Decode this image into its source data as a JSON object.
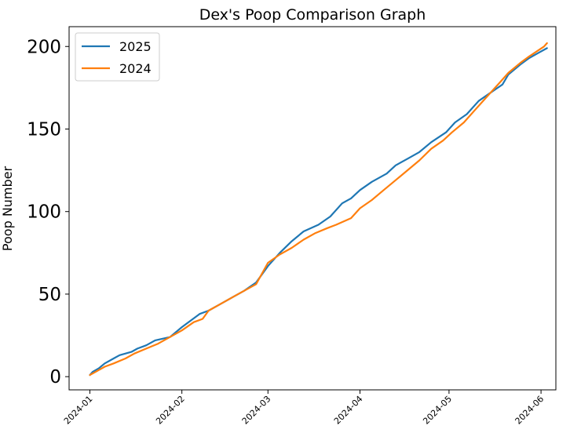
{
  "chart_data": {
    "type": "line",
    "title": "Dex's Poop Comparison Graph",
    "xlabel": "",
    "ylabel": "Poop Number",
    "x_axis_type": "date",
    "xlim": [
      "2023-12-25",
      "2024-06-06"
    ],
    "ylim": [
      -8,
      212
    ],
    "x_ticks": [
      "2024-01",
      "2024-02",
      "2024-03",
      "2024-04",
      "2024-05",
      "2024-06"
    ],
    "y_ticks": [
      0,
      50,
      100,
      150,
      200
    ],
    "grid": false,
    "legend_position": "upper-left",
    "series": [
      {
        "name": "2025",
        "color": "#1f77b4",
        "points": [
          [
            "2024-01-01",
            1
          ],
          [
            "2024-01-02",
            3
          ],
          [
            "2024-01-04",
            5
          ],
          [
            "2024-01-06",
            8
          ],
          [
            "2024-01-09",
            11
          ],
          [
            "2024-01-11",
            13
          ],
          [
            "2024-01-15",
            15
          ],
          [
            "2024-01-17",
            17
          ],
          [
            "2024-01-20",
            19
          ],
          [
            "2024-01-23",
            22
          ],
          [
            "2024-01-28",
            24
          ],
          [
            "2024-02-01",
            30
          ],
          [
            "2024-02-04",
            34
          ],
          [
            "2024-02-07",
            38
          ],
          [
            "2024-02-10",
            40
          ],
          [
            "2024-02-14",
            44
          ],
          [
            "2024-02-18",
            48
          ],
          [
            "2024-02-22",
            52
          ],
          [
            "2024-02-26",
            57
          ],
          [
            "2024-03-01",
            67
          ],
          [
            "2024-03-05",
            75
          ],
          [
            "2024-03-09",
            82
          ],
          [
            "2024-03-13",
            88
          ],
          [
            "2024-03-18",
            92
          ],
          [
            "2024-03-22",
            97
          ],
          [
            "2024-03-26",
            105
          ],
          [
            "2024-03-29",
            108
          ],
          [
            "2024-04-01",
            113
          ],
          [
            "2024-04-05",
            118
          ],
          [
            "2024-04-10",
            123
          ],
          [
            "2024-04-13",
            128
          ],
          [
            "2024-04-17",
            132
          ],
          [
            "2024-04-21",
            136
          ],
          [
            "2024-04-25",
            142
          ],
          [
            "2024-04-30",
            148
          ],
          [
            "2024-05-03",
            154
          ],
          [
            "2024-05-07",
            159
          ],
          [
            "2024-05-11",
            167
          ],
          [
            "2024-05-15",
            172
          ],
          [
            "2024-05-19",
            177
          ],
          [
            "2024-05-21",
            183
          ],
          [
            "2024-05-25",
            189
          ],
          [
            "2024-05-28",
            193
          ],
          [
            "2024-05-31",
            196
          ],
          [
            "2024-06-03",
            199
          ]
        ]
      },
      {
        "name": "2024",
        "color": "#ff7f0e",
        "points": [
          [
            "2024-01-01",
            1
          ],
          [
            "2024-01-03",
            3
          ],
          [
            "2024-01-06",
            6
          ],
          [
            "2024-01-09",
            8
          ],
          [
            "2024-01-13",
            11
          ],
          [
            "2024-01-16",
            14
          ],
          [
            "2024-01-20",
            17
          ],
          [
            "2024-01-24",
            20
          ],
          [
            "2024-01-28",
            24
          ],
          [
            "2024-02-01",
            28
          ],
          [
            "2024-02-05",
            33
          ],
          [
            "2024-02-08",
            35
          ],
          [
            "2024-02-10",
            40
          ],
          [
            "2024-02-14",
            44
          ],
          [
            "2024-02-18",
            48
          ],
          [
            "2024-02-22",
            52
          ],
          [
            "2024-02-26",
            56
          ],
          [
            "2024-03-01",
            69
          ],
          [
            "2024-03-05",
            74
          ],
          [
            "2024-03-09",
            78
          ],
          [
            "2024-03-13",
            83
          ],
          [
            "2024-03-17",
            87
          ],
          [
            "2024-03-21",
            90
          ],
          [
            "2024-03-24",
            92
          ],
          [
            "2024-03-29",
            96
          ],
          [
            "2024-04-01",
            102
          ],
          [
            "2024-04-05",
            107
          ],
          [
            "2024-04-09",
            113
          ],
          [
            "2024-04-13",
            119
          ],
          [
            "2024-04-17",
            125
          ],
          [
            "2024-04-21",
            131
          ],
          [
            "2024-04-25",
            138
          ],
          [
            "2024-04-29",
            143
          ],
          [
            "2024-05-02",
            148
          ],
          [
            "2024-05-06",
            154
          ],
          [
            "2024-05-10",
            162
          ],
          [
            "2024-05-14",
            170
          ],
          [
            "2024-05-18",
            178
          ],
          [
            "2024-05-21",
            184
          ],
          [
            "2024-05-25",
            190
          ],
          [
            "2024-05-28",
            194
          ],
          [
            "2024-06-02",
            200
          ],
          [
            "2024-06-03",
            202
          ]
        ]
      }
    ]
  }
}
